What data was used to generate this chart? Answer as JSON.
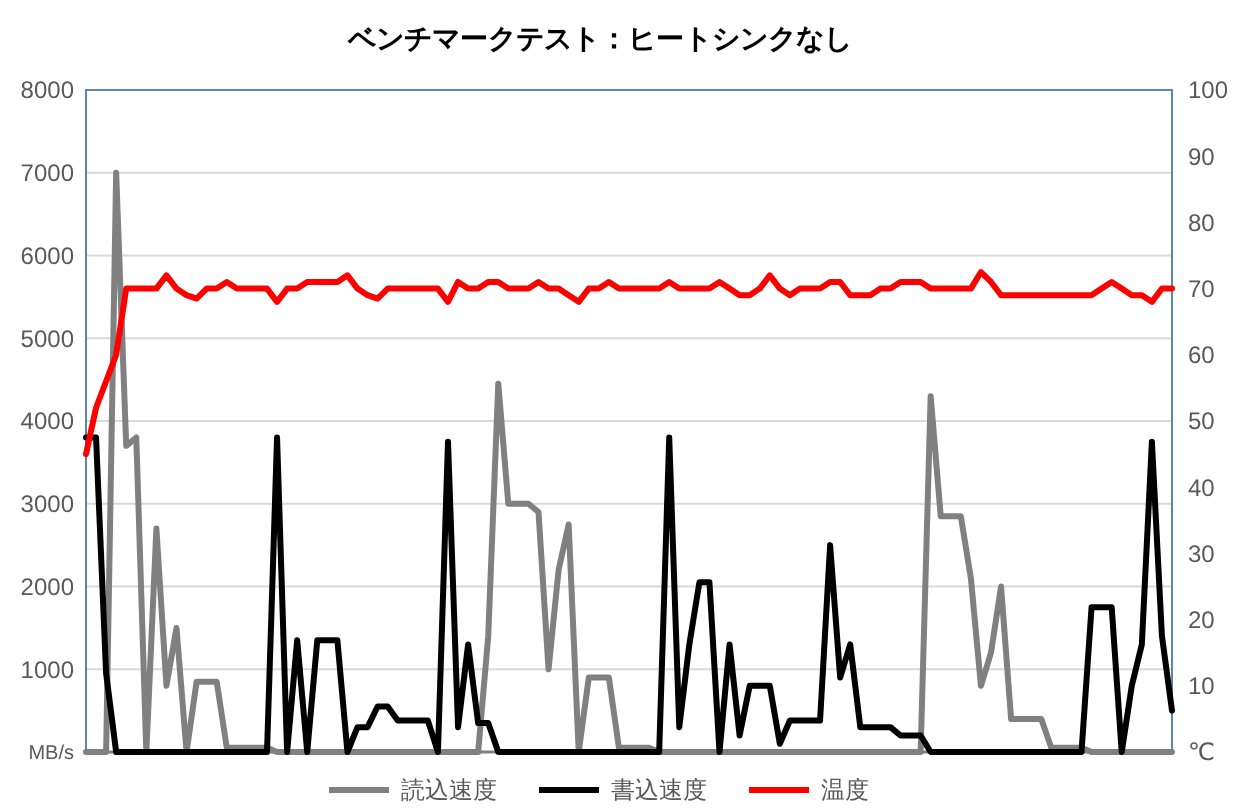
{
  "chart_data": {
    "type": "line",
    "title": "ベンチマークテスト：ヒートシンクなし",
    "categories": [
      null,
      null,
      null,
      null,
      null,
      null,
      null,
      null,
      null,
      null,
      null,
      null,
      null,
      null,
      null,
      null,
      null,
      null,
      null,
      null,
      null,
      null,
      null,
      null,
      null,
      null,
      null,
      null,
      null,
      null,
      null,
      null,
      null,
      null,
      null,
      null,
      null,
      null,
      null,
      null,
      null,
      null,
      null,
      null,
      null,
      null,
      null,
      null,
      null,
      null,
      null,
      null,
      null,
      null,
      null,
      null,
      null,
      null,
      null,
      null,
      null,
      null,
      null,
      null,
      null,
      null,
      null,
      null,
      null,
      null,
      null,
      null,
      null,
      null,
      null,
      null,
      null,
      null,
      null,
      null,
      null,
      null,
      null,
      null,
      null,
      null,
      null,
      null,
      null,
      null,
      null,
      null,
      null,
      null,
      null,
      null,
      null,
      null,
      null,
      null,
      null,
      null,
      null,
      null,
      null,
      null,
      null,
      null,
      null
    ],
    "series": [
      {
        "name": "読込速度",
        "color": "#808080",
        "values": [
          0,
          0,
          0,
          7000,
          3700,
          3800,
          0,
          2700,
          800,
          1500,
          0,
          850,
          850,
          850,
          50,
          50,
          50,
          50,
          50,
          0,
          0,
          0,
          0,
          0,
          0,
          0,
          0,
          0,
          0,
          0,
          0,
          0,
          0,
          0,
          0,
          0,
          0,
          0,
          0,
          0,
          1400,
          4450,
          3000,
          3000,
          3000,
          2900,
          1000,
          2200,
          2750,
          0,
          900,
          900,
          900,
          50,
          50,
          50,
          50,
          0,
          0,
          0,
          0,
          0,
          0,
          0,
          0,
          0,
          0,
          0,
          0,
          0,
          0,
          0,
          0,
          0,
          0,
          0,
          0,
          0,
          0,
          0,
          0,
          0,
          0,
          0,
          4300,
          2850,
          2850,
          2850,
          2100,
          800,
          1200,
          2000,
          400,
          400,
          400,
          400,
          50,
          50,
          50,
          50,
          0,
          0,
          0,
          0,
          0,
          0,
          0,
          0,
          0
        ]
      },
      {
        "name": "書込速度",
        "color": "#000000",
        "values": [
          3800,
          3800,
          950,
          0,
          0,
          0,
          0,
          0,
          0,
          0,
          0,
          0,
          0,
          0,
          0,
          0,
          0,
          0,
          0,
          3800,
          0,
          1350,
          0,
          1350,
          1350,
          1350,
          0,
          300,
          300,
          550,
          550,
          380,
          380,
          380,
          380,
          0,
          3750,
          300,
          1300,
          350,
          350,
          0,
          0,
          0,
          0,
          0,
          0,
          0,
          0,
          0,
          0,
          0,
          0,
          0,
          0,
          0,
          0,
          0,
          3800,
          300,
          1300,
          2050,
          2050,
          0,
          1300,
          200,
          800,
          800,
          800,
          100,
          380,
          380,
          380,
          380,
          2500,
          900,
          1300,
          300,
          300,
          300,
          300,
          200,
          200,
          200,
          0,
          0,
          0,
          0,
          0,
          0,
          0,
          0,
          0,
          0,
          0,
          0,
          0,
          0,
          0,
          0,
          1750,
          1750,
          1750,
          0,
          800,
          1300,
          3750,
          1400,
          500
        ]
      },
      {
        "name": "温度",
        "color": "#ff0000",
        "axis": "y2",
        "values": [
          45,
          52,
          56,
          60,
          70,
          70,
          70,
          70,
          72,
          70,
          69,
          68.5,
          70,
          70,
          71,
          70,
          70,
          70,
          70,
          68,
          70,
          70,
          71,
          71,
          71,
          71,
          72,
          70,
          69,
          68.5,
          70,
          70,
          70,
          70,
          70,
          70,
          68,
          71,
          70,
          70,
          71,
          71,
          70,
          70,
          70,
          71,
          70,
          70,
          69,
          68,
          70,
          70,
          71,
          70,
          70,
          70,
          70,
          70,
          71,
          70,
          70,
          70,
          70,
          71,
          70,
          69,
          69,
          70,
          72,
          70,
          69,
          70,
          70,
          70,
          71,
          71,
          69,
          69,
          69,
          70,
          70,
          71,
          71,
          71,
          70,
          70,
          70,
          70,
          70,
          72.5,
          71,
          69,
          69,
          69,
          69,
          69,
          69,
          69,
          69,
          69,
          69,
          70,
          71,
          70,
          69,
          69,
          68,
          70,
          70
        ]
      }
    ],
    "ylim": [
      0,
      8000
    ],
    "yticks": [
      {
        "value": 0,
        "label": "MB/s"
      },
      1000,
      2000,
      3000,
      4000,
      5000,
      6000,
      7000,
      8000
    ],
    "y2lim": [
      0,
      100
    ],
    "y2ticks": [
      {
        "value": 0,
        "label": "℃"
      },
      10,
      20,
      30,
      40,
      50,
      60,
      70,
      80,
      90,
      100
    ],
    "grid": "y",
    "legend": "bottom"
  }
}
